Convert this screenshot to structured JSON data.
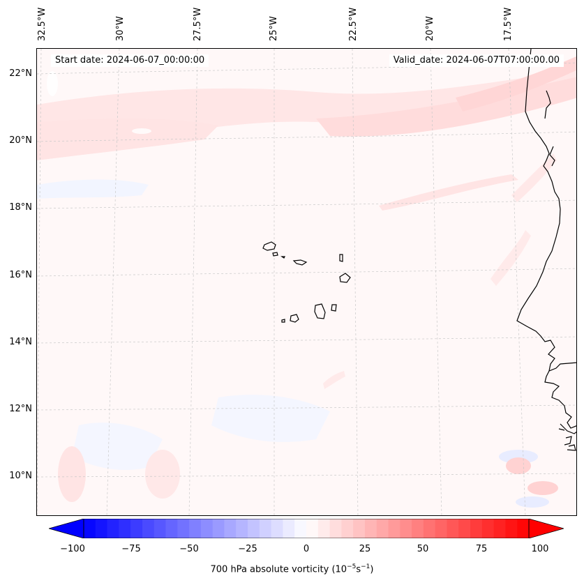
{
  "map": {
    "start_date": "Start date: 2024-06-07_00:00:00",
    "valid_date": "Valid_date: 2024-06-07T07:00:00.00",
    "lon_labels": [
      "32.5°W",
      "30°W",
      "27.5°W",
      "25°W",
      "22.5°W",
      "20°W",
      "17.5°W"
    ],
    "lat_labels": [
      "22°N",
      "20°N",
      "18°N",
      "16°N",
      "14°N",
      "12°N",
      "10°N"
    ],
    "colors": {
      "ocean_tint": "#fff8f8",
      "band_pink": "#ffe2e2",
      "light_blue": "#f2f5ff",
      "coast": "#000000",
      "grid": "#bfbfbf"
    }
  },
  "colorbar": {
    "label_main": "700 hPa absolute vorticity (10",
    "label_exp1": "−5",
    "label_mid": "s",
    "label_exp2": "−1",
    "label_end": ")",
    "ticks": [
      "−100",
      "−75",
      "−50",
      "−25",
      "0",
      "25",
      "50",
      "75",
      "100"
    ],
    "min_color": "#0000ff",
    "mid_color": "#ffffff",
    "max_color": "#ff0000"
  }
}
